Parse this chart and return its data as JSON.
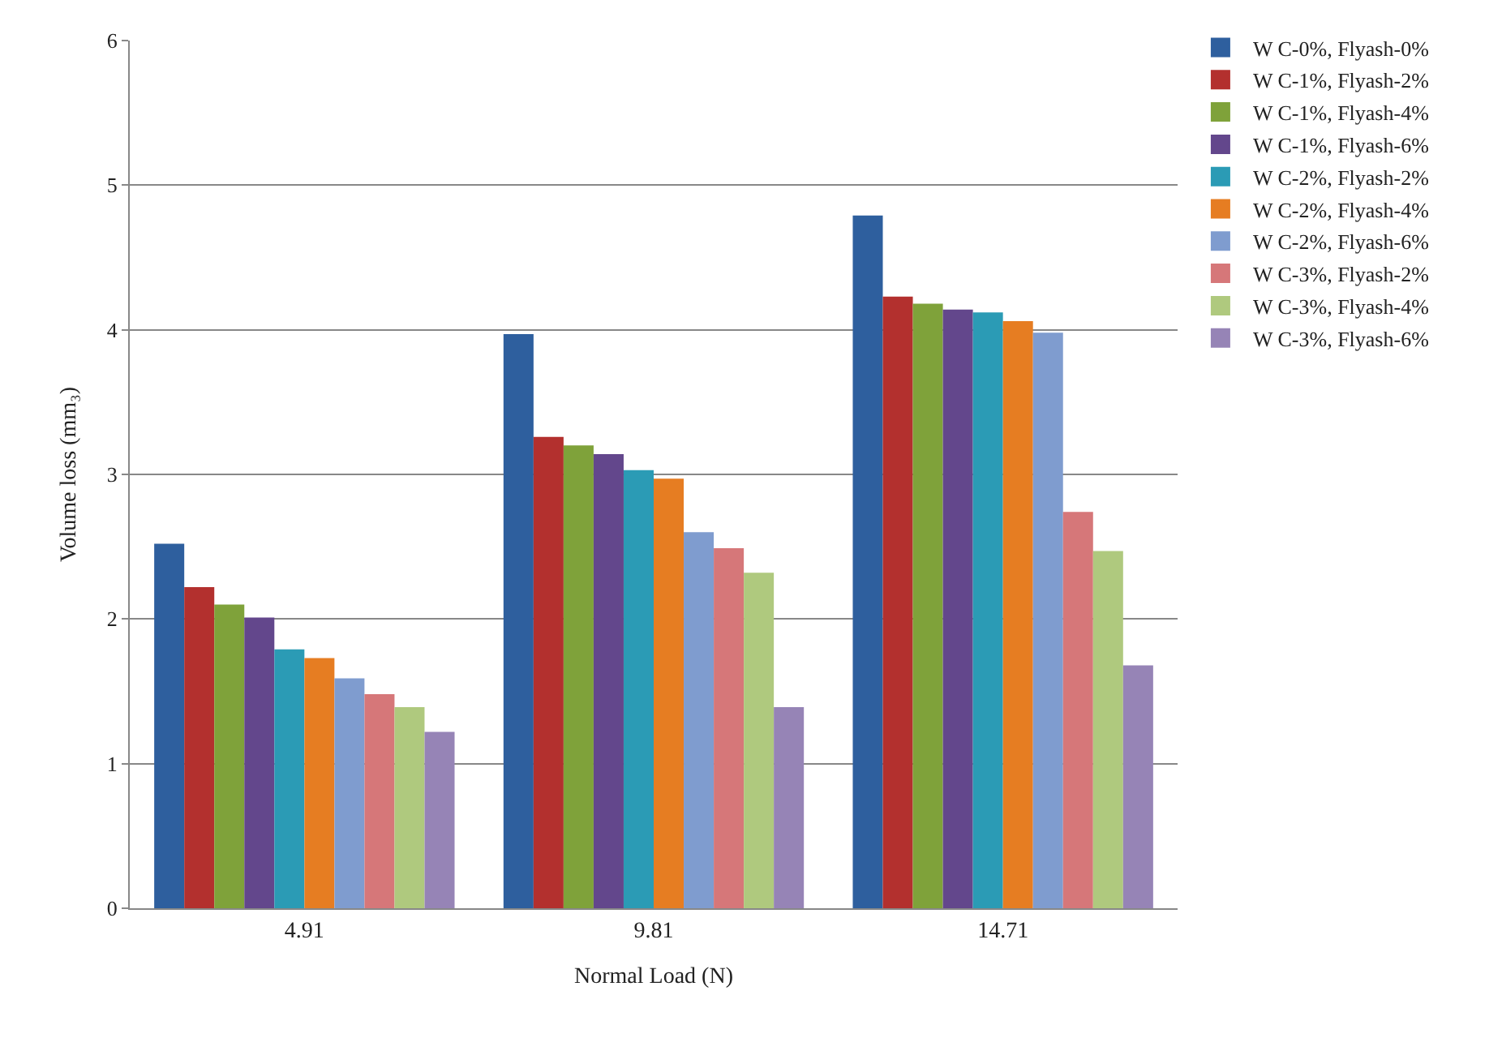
{
  "chart_data": {
    "type": "bar",
    "xlabel": "Normal Load (N)",
    "ylabel": "Volume loss (mm₃)",
    "categories": [
      "4.91",
      "9.81",
      "14.71"
    ],
    "ylim": [
      0,
      6
    ],
    "yticks": [
      0,
      1,
      2,
      3,
      4,
      5,
      6
    ],
    "grid": "y",
    "legend": "right",
    "series": [
      {
        "name": "W C-0%, Flyash-0%",
        "color": "#2e5f9e",
        "values": [
          2.52,
          3.97,
          4.79
        ]
      },
      {
        "name": "W C-1%, Flyash-2%",
        "color": "#b3302e",
        "values": [
          2.22,
          3.26,
          4.23
        ]
      },
      {
        "name": "W C-1%, Flyash-4%",
        "color": "#7fa23a",
        "values": [
          2.1,
          3.2,
          4.18
        ]
      },
      {
        "name": "W C-1%, Flyash-6%",
        "color": "#63478c",
        "values": [
          2.01,
          3.14,
          4.14
        ]
      },
      {
        "name": "W C-2%, Flyash-2%",
        "color": "#2b9bb5",
        "values": [
          1.79,
          3.03,
          4.12
        ]
      },
      {
        "name": "W C-2%, Flyash-4%",
        "color": "#e67d22",
        "values": [
          1.73,
          2.97,
          4.06
        ]
      },
      {
        "name": "W C-2%, Flyash-6%",
        "color": "#7f9ccf",
        "values": [
          1.59,
          2.6,
          3.98
        ]
      },
      {
        "name": "W C-3%, Flyash-2%",
        "color": "#d67779",
        "values": [
          1.48,
          2.49,
          2.74
        ]
      },
      {
        "name": "W C-3%, Flyash-4%",
        "color": "#afc97e",
        "values": [
          1.39,
          2.32,
          2.47
        ]
      },
      {
        "name": "W C-3%, Flyash-6%",
        "color": "#9684b6",
        "values": [
          1.22,
          1.39,
          1.68
        ]
      }
    ]
  }
}
